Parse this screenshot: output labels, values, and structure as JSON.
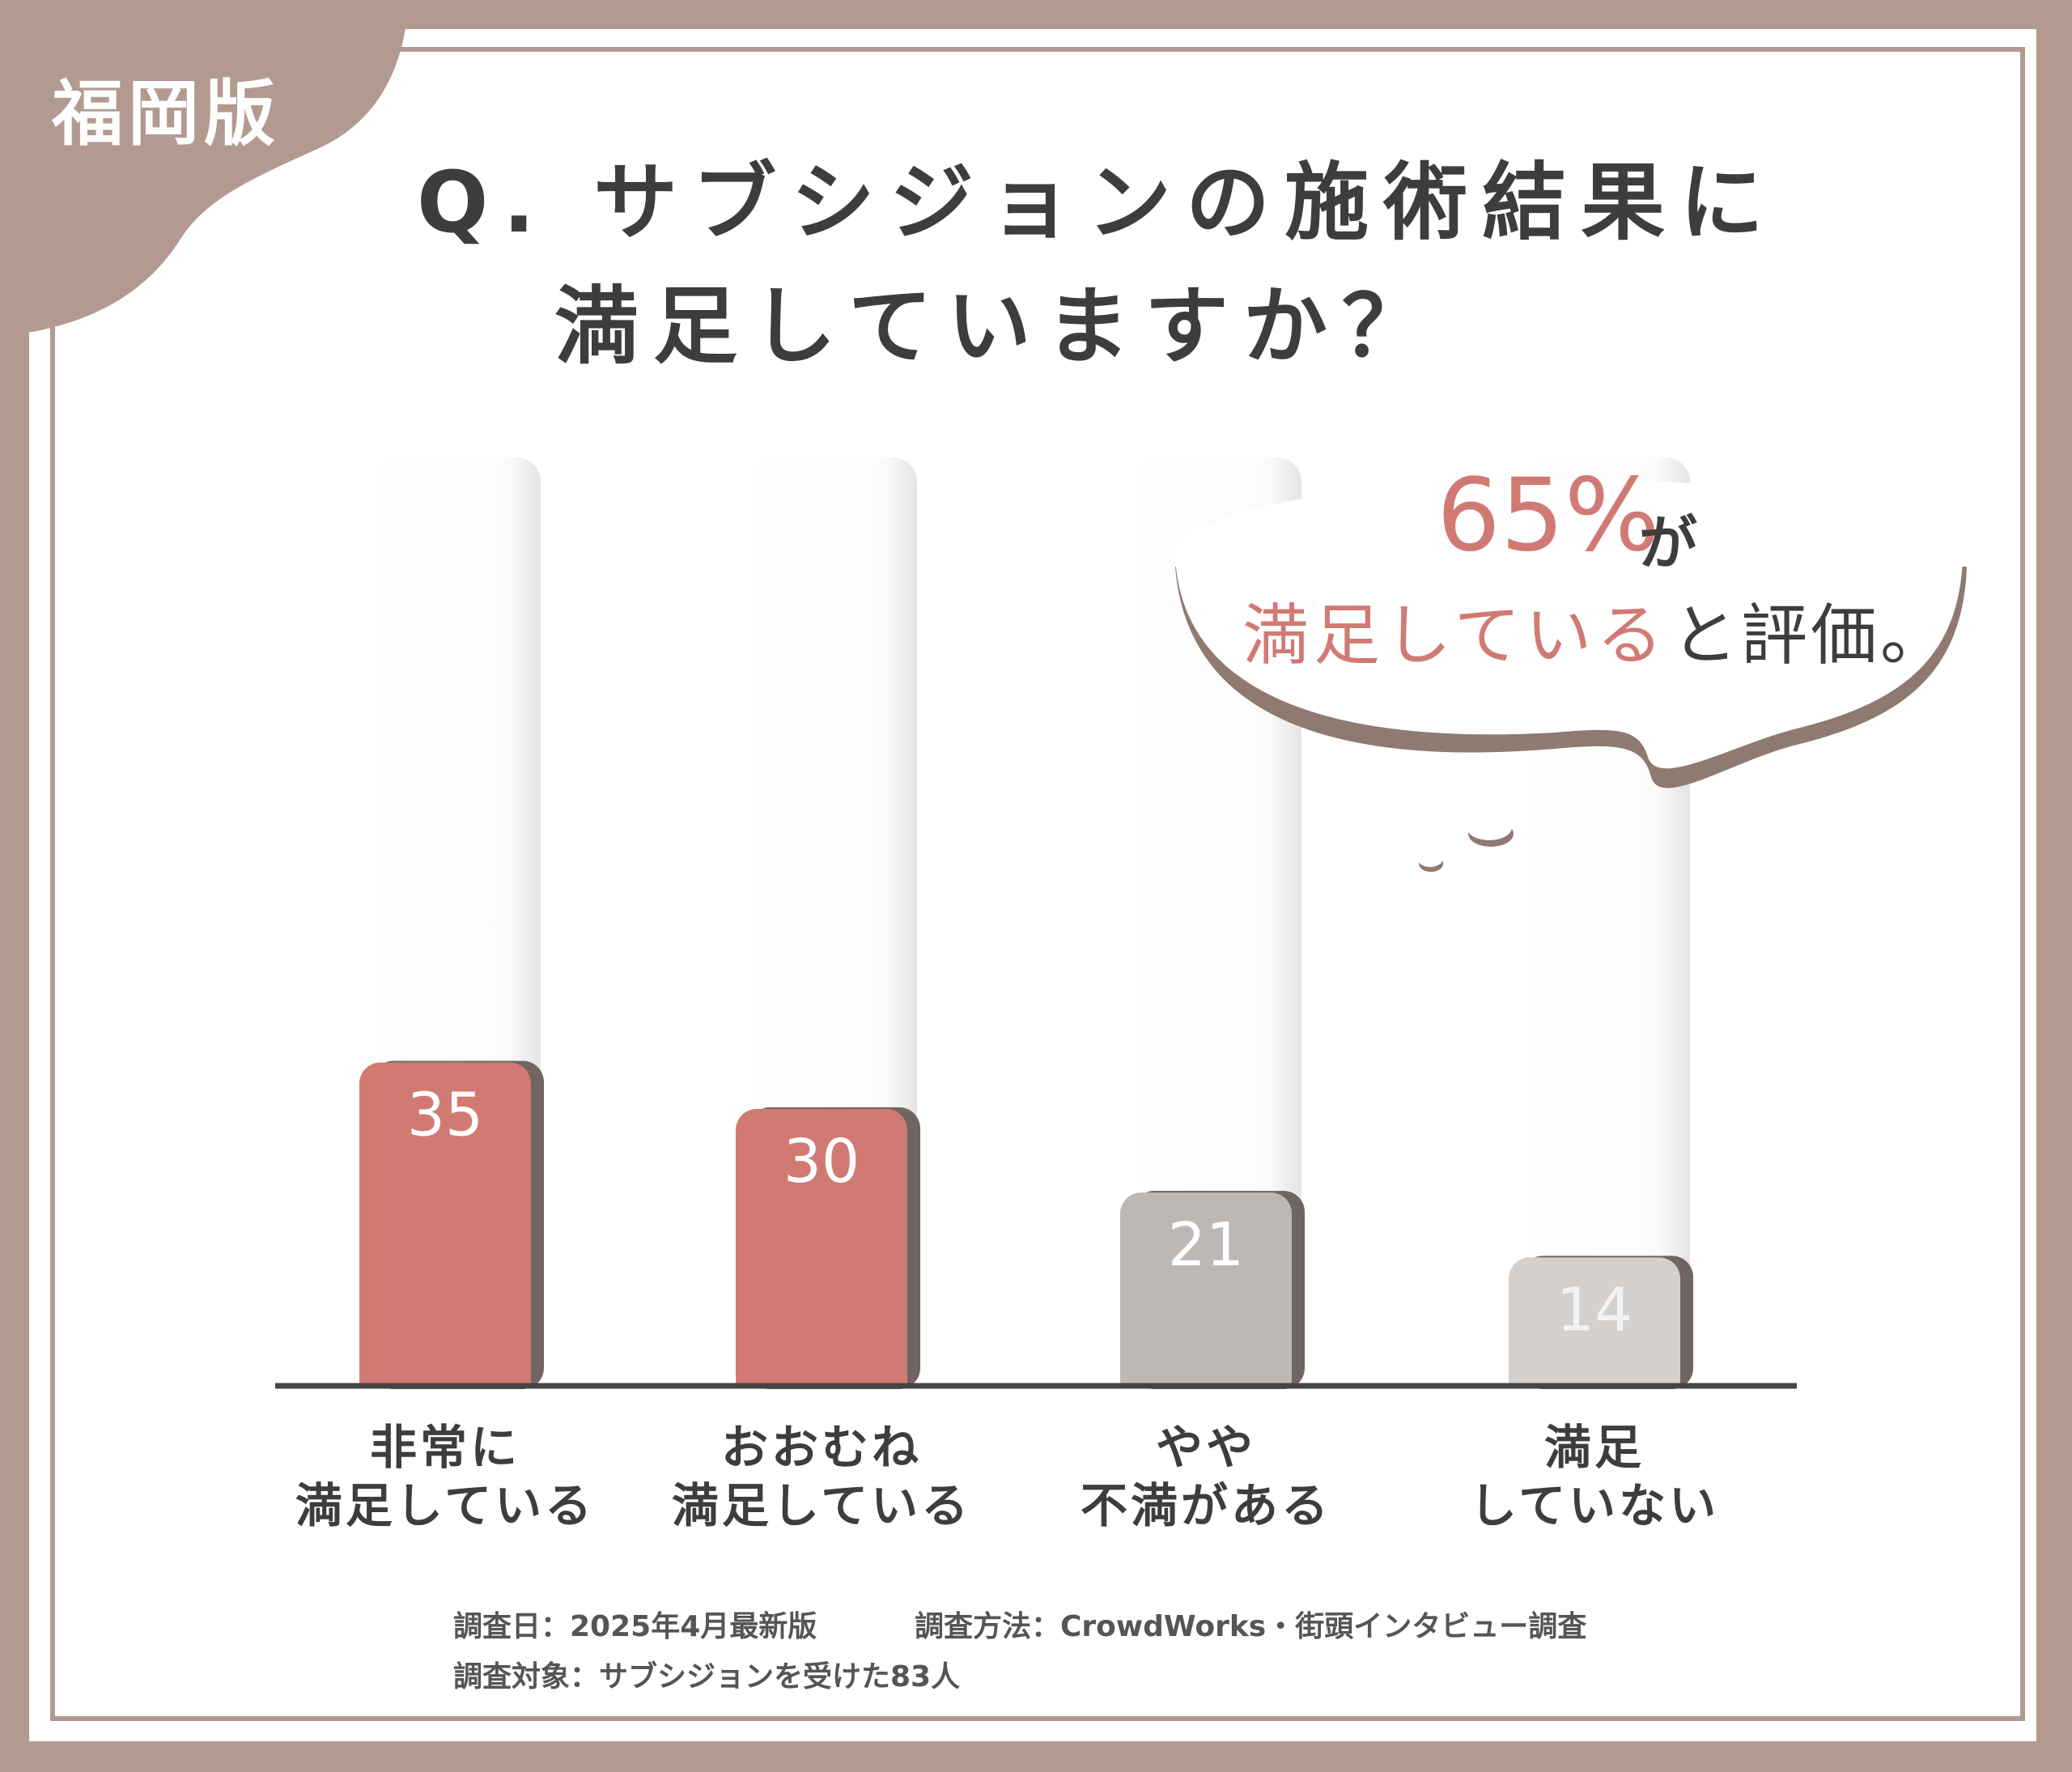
{
  "badge": {
    "region": "福岡版"
  },
  "question": {
    "line1": "Q. サブシジョンの施術結果に",
    "line2": "満足していますか？"
  },
  "callout": {
    "percent": "65%",
    "ga": "が",
    "highlight": "満足している",
    "suffix": "と評価。"
  },
  "chart_data": {
    "type": "bar",
    "categories": [
      "非常に\n満足している",
      "おおむね\n満足している",
      "やや\n不満がある",
      "満足\nしていない"
    ],
    "values": [
      35,
      30,
      21,
      14
    ],
    "ylim": [
      0,
      100
    ],
    "colors": [
      "#d17a74",
      "#d17a74",
      "#bdb8b6",
      "#d3d0ce"
    ],
    "value_label_colors": [
      "#ffffff",
      "#ffffff",
      "#ffffff",
      "#f2f2f2"
    ]
  },
  "footer": {
    "date": "調査日：2025年4月最新版",
    "method": "調査方法：CrowdWorks・街頭インタビュー調査",
    "target": "調査対象：サブシジョンを受けた83人"
  }
}
